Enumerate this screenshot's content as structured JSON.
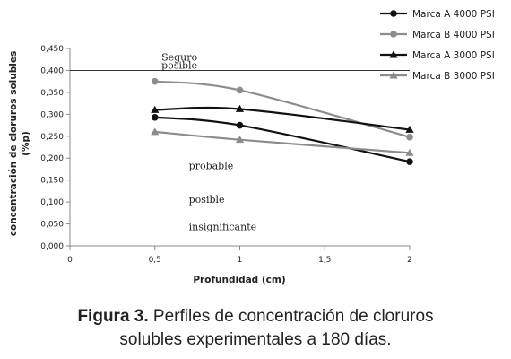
{
  "chart_data": {
    "type": "line",
    "ylabel_line1": "concentración de cloruros solubles",
    "ylabel_line2": "(%p)",
    "xlabel": "Profundidad (cm)",
    "xlim": [
      0,
      2
    ],
    "ylim": [
      0,
      0.45
    ],
    "xticks": [
      0,
      0.5,
      1,
      1.5,
      2
    ],
    "xtick_labels": [
      "0",
      "0,5",
      "1",
      "1,5",
      "2"
    ],
    "yticks": [
      0,
      0.05,
      0.1,
      0.15,
      0.2,
      0.25,
      0.3,
      0.35,
      0.4,
      0.45
    ],
    "ytick_labels": [
      "0,000",
      "0,050",
      "0,100",
      "0,150",
      "0,200",
      "0,250",
      "0,300",
      "0,350",
      "0,400",
      "0,450"
    ],
    "grid": false,
    "legend_position": "top-right",
    "threshold": {
      "y": 0.4,
      "label_line1": "Seguro",
      "label_line2": "posible"
    },
    "zone_labels": [
      {
        "text": "probable",
        "x": 0.7,
        "y": 0.175
      },
      {
        "text": "posible",
        "x": 0.7,
        "y": 0.098
      },
      {
        "text": "insignificante",
        "x": 0.7,
        "y": 0.036
      }
    ],
    "x": [
      0.5,
      1,
      2
    ],
    "series": [
      {
        "name": "Marca A 4000 PSI",
        "values": [
          0.293,
          0.275,
          0.192
        ],
        "color": "#111111",
        "marker": "circle"
      },
      {
        "name": "Marca B 4000 PSI",
        "values": [
          0.375,
          0.355,
          0.248
        ],
        "color": "#8c8c8c",
        "marker": "circle"
      },
      {
        "name": "Marca A 3000 PSI",
        "values": [
          0.31,
          0.312,
          0.265
        ],
        "color": "#111111",
        "marker": "triangle"
      },
      {
        "name": "Marca B 3000 PSI",
        "values": [
          0.26,
          0.242,
          0.212
        ],
        "color": "#8c8c8c",
        "marker": "triangle"
      }
    ]
  },
  "caption": {
    "label": "Figura 3.",
    "text_line1": " Perfiles de concentración de cloruros",
    "text_line2": "solubles experimentales a 180 días."
  }
}
